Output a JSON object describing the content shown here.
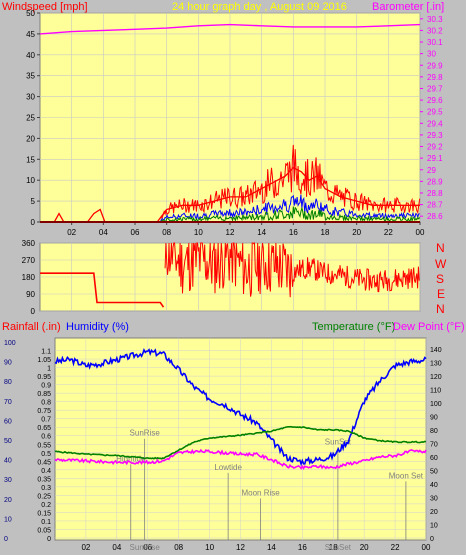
{
  "header": {
    "title": "24 hour graph day , August 09 2016",
    "wind_label": "Windspeed [mph]",
    "baro_label": "Barometer [.in]",
    "title_color": "#ffff00",
    "wind_color": "#ff0000",
    "baro_color": "#ff00ff"
  },
  "direction_letters": [
    "N",
    "W",
    "S",
    "E",
    "N"
  ],
  "bottom_labels": {
    "rain": "Rainfall (.in)",
    "humidity": "Humidity (%)",
    "temperature": "Temperature (°F)",
    "dewpoint": "Dew Point (°F)"
  },
  "colors": {
    "plot_bg": "#ffff99",
    "frame": "#c0c0c0",
    "wind": "#ff0000",
    "gust_blue": "#0000ff",
    "gust_green": "#008000",
    "barometer": "#ff00ff",
    "direction": "#ff0000",
    "humidity": "#0000ff",
    "temperature": "#008000",
    "dewpoint": "#ff00ff",
    "events": "#808080"
  },
  "chart_data": [
    {
      "type": "line",
      "name": "wind-and-barometer",
      "title": "24 hour graph day , August 09 2016",
      "xlabel": "",
      "x_ticks": [
        "02",
        "04",
        "06",
        "08",
        "10",
        "12",
        "14",
        "16",
        "18",
        "20",
        "22",
        "00"
      ],
      "xlim": [
        0,
        24
      ],
      "ylabel": "Windspeed [mph]",
      "ylim": [
        0,
        50
      ],
      "y_ticks": [
        0,
        5,
        10,
        15,
        20,
        25,
        30,
        35,
        40,
        45,
        50
      ],
      "y2label": "Barometer [.in]",
      "y2lim": [
        28.55,
        30.35
      ],
      "y2_ticks": [
        "28.6",
        "28.7",
        "28.8",
        "28.9",
        "29",
        "29.1",
        "29.2",
        "29.3",
        "29.4",
        "29.5",
        "29.6",
        "29.7",
        "29.8",
        "29.9",
        "30",
        "30.1",
        "30.2",
        "30.3"
      ],
      "series": [
        {
          "name": "Windspeed [mph]",
          "axis": "left",
          "x": [
            0,
            0.9,
            1.2,
            1.5,
            2.5,
            3.0,
            3.4,
            3.8,
            4.1,
            5.0,
            7.4,
            7.8,
            8.0,
            9.0,
            10.0,
            11.0,
            12.0,
            13.0,
            14.0,
            15.0,
            15.5,
            16.0,
            16.5,
            17.0,
            17.5,
            18.0,
            19.0,
            20.0,
            21.0,
            22.0,
            23.0,
            24.0
          ],
          "y": [
            0,
            0,
            2,
            0,
            0,
            0,
            2,
            3,
            0,
            0,
            0,
            2,
            3,
            4,
            4,
            5,
            6,
            6,
            8,
            10,
            11,
            13,
            12,
            10,
            11,
            8,
            6,
            5,
            4,
            4,
            4,
            4
          ]
        },
        {
          "name": "Barometer [.in]",
          "axis": "right",
          "x": [
            0,
            2,
            4,
            6,
            8,
            10,
            12,
            14,
            16,
            18,
            20,
            22,
            24
          ],
          "y": [
            30.17,
            30.19,
            30.2,
            30.21,
            30.22,
            30.24,
            30.25,
            30.24,
            30.23,
            30.23,
            30.23,
            30.24,
            30.25
          ]
        }
      ]
    },
    {
      "type": "line",
      "name": "wind-direction",
      "xlim": [
        0,
        24
      ],
      "ylim": [
        0,
        360
      ],
      "y_ticks": [
        0,
        90,
        180,
        270,
        360
      ],
      "series": [
        {
          "name": "Wind direction",
          "x": [
            0,
            3.4,
            3.6,
            7.6,
            7.8,
            8.0,
            9.0,
            10.0,
            11.0,
            12.0,
            13.0,
            14.0,
            15.0,
            16.0,
            17.0,
            18.0,
            19.0,
            20.0,
            21.0,
            22.0,
            23.0,
            24.0
          ],
          "y": [
            200,
            200,
            45,
            45,
            20,
            330,
            250,
            280,
            250,
            300,
            220,
            260,
            240,
            210,
            230,
            200,
            190,
            170,
            160,
            165,
            175,
            180
          ]
        }
      ]
    },
    {
      "type": "line",
      "name": "humidity-temperature",
      "xlim": [
        0,
        24
      ],
      "y_ticks_rain": [
        "0",
        "0.05",
        "0.1",
        "0.15",
        "0.2",
        "0.25",
        "0.3",
        "0.35",
        "0.4",
        "0.45",
        "0.5",
        "0.55",
        "0.6",
        "0.65",
        "0.7",
        "0.75",
        "0.8",
        "0.85",
        "0.9",
        "0.95",
        "1",
        "1.05",
        "1.1"
      ],
      "rain_lim": [
        0,
        1.15
      ],
      "y_ticks_humidity": [
        0,
        10,
        20,
        30,
        40,
        50,
        60,
        70,
        80,
        90,
        100
      ],
      "humidity_lim": [
        0,
        100
      ],
      "y_ticks_temp": [
        0,
        10,
        20,
        30,
        40,
        50,
        60,
        70,
        80,
        90,
        100,
        110,
        120,
        130,
        140
      ],
      "temp_lim": [
        0,
        145
      ],
      "series": [
        {
          "name": "Humidity (%)",
          "axis": "humidity",
          "x": [
            0,
            1,
            2,
            3,
            4,
            5,
            6,
            7,
            8,
            9,
            10,
            11,
            12,
            13,
            14,
            15,
            16,
            17,
            18,
            19,
            20,
            21,
            22,
            23,
            24
          ],
          "y": [
            90,
            91,
            88,
            89,
            91,
            93,
            95,
            94,
            86,
            77,
            71,
            68,
            63,
            59,
            50,
            41,
            39,
            40,
            42,
            50,
            70,
            80,
            88,
            90,
            91
          ]
        },
        {
          "name": "Temperature (°F)",
          "axis": "temp",
          "x": [
            0,
            2,
            4,
            6,
            7,
            8,
            9,
            10,
            12,
            14,
            15,
            16,
            17,
            18,
            19,
            20,
            21,
            22,
            23,
            24
          ],
          "y": [
            64,
            62,
            61,
            59,
            59,
            65,
            71,
            74,
            76,
            79,
            82,
            82,
            80,
            80,
            79,
            74,
            72,
            71,
            71,
            71
          ]
        },
        {
          "name": "Dew Point (°F)",
          "axis": "temp",
          "x": [
            0,
            2,
            4,
            6,
            7,
            8,
            9,
            10,
            12,
            13,
            14,
            15,
            16,
            17,
            18,
            19,
            20,
            21,
            22,
            23,
            24
          ],
          "y": [
            58,
            57,
            56,
            56,
            57,
            63,
            64,
            64,
            62,
            62,
            58,
            53,
            52,
            53,
            52,
            55,
            57,
            60,
            61,
            64,
            64
          ]
        }
      ],
      "events": [
        {
          "label": "SunRise",
          "x": 5.8,
          "y": 0.6
        },
        {
          "label": "Hightide",
          "x": 4.9,
          "y": 0.45
        },
        {
          "label": "Lowtide",
          "x": 11.2,
          "y": 0.4
        },
        {
          "label": "Moon Rise",
          "x": 13.3,
          "y": 0.25
        },
        {
          "label": "SunSet",
          "x": 18.3,
          "y": 0.55
        },
        {
          "label": "Moon Set",
          "x": 22.7,
          "y": 0.35
        }
      ],
      "event_x_labels": [
        "SunRise",
        "SunSet"
      ]
    }
  ]
}
